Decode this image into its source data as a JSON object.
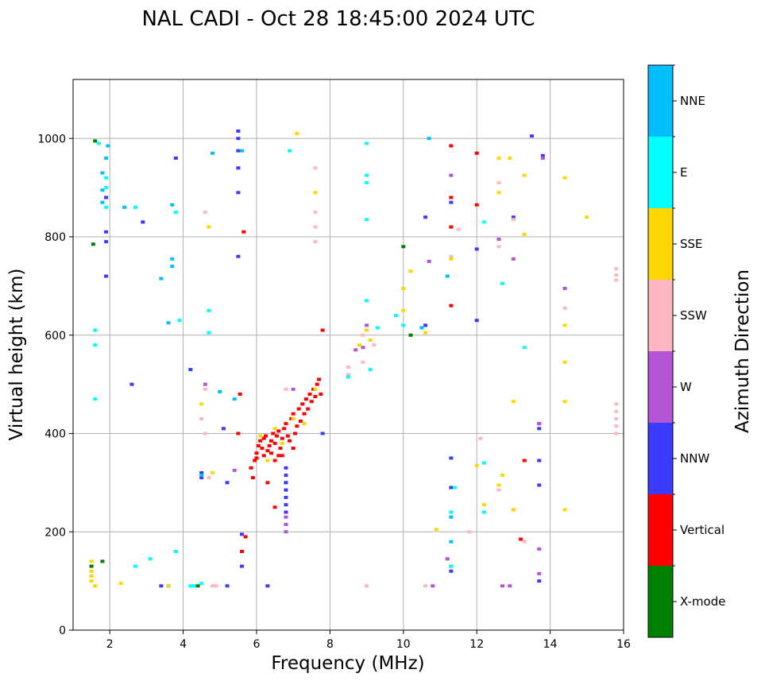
{
  "chart_data": {
    "type": "scatter",
    "title": "NAL CADI - Oct 28 18:45:00 2024 UTC",
    "xlabel": "Frequency (MHz)",
    "ylabel": "Virtual height (km)",
    "xlim": [
      1.0,
      16.0
    ],
    "ylim": [
      0,
      1120
    ],
    "xticks": [
      2,
      4,
      6,
      8,
      10,
      12,
      14,
      16
    ],
    "yticks": [
      0,
      200,
      400,
      600,
      800,
      1000
    ],
    "grid": true,
    "colorbar": {
      "label": "Azimuth Direction",
      "categories": [
        {
          "name": "X-mode",
          "color": "#008000"
        },
        {
          "name": "Vertical",
          "color": "#ff0000"
        },
        {
          "name": "NNW",
          "color": "#3b3bff"
        },
        {
          "name": "W",
          "color": "#b455d5"
        },
        {
          "name": "SSW",
          "color": "#ffb6c1"
        },
        {
          "name": "SSE",
          "color": "#ffd700"
        },
        {
          "name": "E",
          "color": "#00ffff"
        },
        {
          "name": "NNE",
          "color": "#00bfff"
        }
      ]
    },
    "series": [
      {
        "name": "Vertical",
        "points": [
          [
            5.85,
            330
          ],
          [
            5.95,
            345
          ],
          [
            6.0,
            360
          ],
          [
            6.05,
            375
          ],
          [
            6.1,
            385
          ],
          [
            6.15,
            370
          ],
          [
            6.2,
            390
          ],
          [
            6.25,
            395
          ],
          [
            6.3,
            365
          ],
          [
            6.35,
            375
          ],
          [
            6.4,
            385
          ],
          [
            6.45,
            400
          ],
          [
            6.5,
            380
          ],
          [
            6.55,
            395
          ],
          [
            6.6,
            405
          ],
          [
            6.65,
            370
          ],
          [
            6.7,
            390
          ],
          [
            6.75,
            410
          ],
          [
            6.8,
            420
          ],
          [
            6.85,
            395
          ],
          [
            6.9,
            385
          ],
          [
            6.95,
            430
          ],
          [
            7.0,
            440
          ],
          [
            7.05,
            400
          ],
          [
            7.1,
            415
          ],
          [
            7.15,
            450
          ],
          [
            7.2,
            425
          ],
          [
            7.25,
            460
          ],
          [
            7.3,
            440
          ],
          [
            7.35,
            470
          ],
          [
            7.4,
            450
          ],
          [
            7.45,
            480
          ],
          [
            7.5,
            465
          ],
          [
            7.55,
            490
          ],
          [
            7.6,
            475
          ],
          [
            7.65,
            500
          ],
          [
            7.7,
            510
          ],
          [
            7.75,
            480
          ],
          [
            6.2,
            355
          ],
          [
            6.4,
            360
          ],
          [
            6.6,
            355
          ],
          [
            6.0,
            350
          ],
          [
            5.9,
            310
          ],
          [
            6.5,
            345
          ],
          [
            6.7,
            355
          ],
          [
            5.7,
            190
          ],
          [
            5.6,
            160
          ],
          [
            6.8,
            300
          ],
          [
            5.55,
            480
          ],
          [
            5.65,
            810
          ],
          [
            12.0,
            970
          ],
          [
            12.0,
            865
          ],
          [
            11.3,
            880
          ],
          [
            11.3,
            820
          ],
          [
            11.3,
            985
          ],
          [
            11.3,
            660
          ],
          [
            7.8,
            610
          ],
          [
            6.5,
            250
          ],
          [
            13.2,
            185
          ],
          [
            13.3,
            345
          ],
          [
            5.5,
            400
          ],
          [
            6.3,
            300
          ],
          [
            7.0,
            370
          ]
        ]
      },
      {
        "name": "NNW",
        "points": [
          [
            6.8,
            330
          ],
          [
            6.8,
            315
          ],
          [
            6.8,
            300
          ],
          [
            6.8,
            285
          ],
          [
            6.8,
            270
          ],
          [
            6.8,
            255
          ],
          [
            6.8,
            240
          ],
          [
            5.5,
            1015
          ],
          [
            5.5,
            1000
          ],
          [
            5.5,
            975
          ],
          [
            5.5,
            940
          ],
          [
            5.5,
            890
          ],
          [
            3.8,
            960
          ],
          [
            4.2,
            530
          ],
          [
            2.6,
            500
          ],
          [
            1.9,
            810
          ],
          [
            1.9,
            790
          ],
          [
            1.9,
            880
          ],
          [
            1.9,
            720
          ],
          [
            11.3,
            870
          ],
          [
            11.3,
            350
          ],
          [
            11.3,
            290
          ],
          [
            11.3,
            130
          ],
          [
            11.3,
            120
          ],
          [
            13.5,
            1005
          ],
          [
            13.8,
            965
          ],
          [
            13.0,
            840
          ],
          [
            12.0,
            775
          ],
          [
            12.0,
            630
          ],
          [
            13.7,
            420
          ],
          [
            13.7,
            410
          ],
          [
            13.7,
            345
          ],
          [
            13.7,
            295
          ],
          [
            13.7,
            100
          ],
          [
            10.6,
            840
          ],
          [
            10.6,
            620
          ],
          [
            6.3,
            90
          ],
          [
            3.4,
            90
          ],
          [
            3.6,
            90
          ],
          [
            5.6,
            130
          ],
          [
            5.6,
            195
          ],
          [
            5.2,
            90
          ],
          [
            5.5,
            760
          ],
          [
            2.9,
            830
          ],
          [
            7.8,
            400
          ],
          [
            4.5,
            320
          ],
          [
            4.5,
            310
          ],
          [
            5.1,
            410
          ],
          [
            5.2,
            300
          ]
        ]
      },
      {
        "name": "W",
        "points": [
          [
            6.8,
            230
          ],
          [
            6.8,
            215
          ],
          [
            6.8,
            200
          ],
          [
            7.0,
            490
          ],
          [
            8.7,
            570
          ],
          [
            9.0,
            620
          ],
          [
            13.0,
            755
          ],
          [
            13.0,
            245
          ],
          [
            12.6,
            795
          ],
          [
            13.7,
            420
          ],
          [
            13.7,
            165
          ],
          [
            13.7,
            115
          ],
          [
            14.4,
            695
          ],
          [
            13.8,
            960
          ],
          [
            11.2,
            145
          ],
          [
            11.3,
            925
          ],
          [
            10.8,
            90
          ],
          [
            12.7,
            90
          ],
          [
            12.9,
            90
          ],
          [
            10.7,
            750
          ],
          [
            8.9,
            575
          ],
          [
            4.6,
            500
          ],
          [
            5.4,
            325
          ]
        ]
      },
      {
        "name": "SSW",
        "points": [
          [
            15.8,
            460
          ],
          [
            15.8,
            445
          ],
          [
            15.8,
            430
          ],
          [
            15.8,
            415
          ],
          [
            15.8,
            400
          ],
          [
            15.8,
            735
          ],
          [
            15.8,
            722
          ],
          [
            15.8,
            712
          ],
          [
            8.5,
            520
          ],
          [
            8.5,
            535
          ],
          [
            8.9,
            545
          ],
          [
            9.2,
            580
          ],
          [
            11.5,
            815
          ],
          [
            12.6,
            910
          ],
          [
            12.6,
            780
          ],
          [
            12.6,
            285
          ],
          [
            13.0,
            835
          ],
          [
            13.3,
            180
          ],
          [
            14.4,
            655
          ],
          [
            11.3,
            760
          ],
          [
            11.8,
            200
          ],
          [
            12.1,
            390
          ],
          [
            10.6,
            90
          ],
          [
            9.0,
            90
          ],
          [
            6.8,
            490
          ],
          [
            4.6,
            490
          ],
          [
            4.5,
            430
          ],
          [
            4.6,
            400
          ],
          [
            4.7,
            310
          ],
          [
            7.6,
            790
          ],
          [
            7.6,
            820
          ],
          [
            7.6,
            850
          ],
          [
            7.6,
            940
          ],
          [
            8.9,
            600
          ],
          [
            4.6,
            850
          ],
          [
            4.8,
            90
          ],
          [
            4.9,
            90
          ]
        ]
      },
      {
        "name": "SSE",
        "points": [
          [
            1.5,
            140
          ],
          [
            1.5,
            130
          ],
          [
            1.5,
            120
          ],
          [
            1.5,
            110
          ],
          [
            1.5,
            100
          ],
          [
            1.6,
            90
          ],
          [
            3.6,
            90
          ],
          [
            2.3,
            95
          ],
          [
            4.7,
            820
          ],
          [
            7.1,
            1010
          ],
          [
            7.6,
            890
          ],
          [
            8.8,
            580
          ],
          [
            9.0,
            610
          ],
          [
            9.1,
            590
          ],
          [
            10.0,
            695
          ],
          [
            10.0,
            650
          ],
          [
            10.2,
            730
          ],
          [
            10.6,
            605
          ],
          [
            10.9,
            205
          ],
          [
            11.3,
            755
          ],
          [
            12.2,
            255
          ],
          [
            12.6,
            960
          ],
          [
            12.6,
            890
          ],
          [
            12.6,
            295
          ],
          [
            12.7,
            315
          ],
          [
            12.9,
            960
          ],
          [
            13.0,
            465
          ],
          [
            13.0,
            245
          ],
          [
            13.3,
            925
          ],
          [
            13.3,
            805
          ],
          [
            14.4,
            920
          ],
          [
            14.4,
            620
          ],
          [
            14.4,
            545
          ],
          [
            14.4,
            465
          ],
          [
            14.4,
            245
          ],
          [
            15.0,
            840
          ],
          [
            6.7,
            380
          ],
          [
            6.5,
            410
          ],
          [
            7.0,
            430
          ],
          [
            7.3,
            420
          ],
          [
            7.6,
            490
          ],
          [
            6.1,
            395
          ],
          [
            6.3,
            345
          ],
          [
            4.8,
            320
          ],
          [
            4.5,
            460
          ],
          [
            12.0,
            335
          ]
        ]
      },
      {
        "name": "E",
        "points": [
          [
            1.9,
            920
          ],
          [
            1.9,
            900
          ],
          [
            1.9,
            860
          ],
          [
            9.0,
            925
          ],
          [
            9.0,
            910
          ],
          [
            9.0,
            990
          ],
          [
            9.0,
            835
          ],
          [
            9.0,
            670
          ],
          [
            9.3,
            615
          ],
          [
            9.8,
            640
          ],
          [
            10.0,
            620
          ],
          [
            12.2,
            830
          ],
          [
            12.7,
            705
          ],
          [
            13.3,
            575
          ],
          [
            11.3,
            130
          ],
          [
            11.3,
            240
          ],
          [
            11.4,
            290
          ],
          [
            12.2,
            240
          ],
          [
            12.2,
            340
          ],
          [
            8.5,
            515
          ],
          [
            9.1,
            530
          ],
          [
            3.8,
            850
          ],
          [
            3.8,
            160
          ],
          [
            4.7,
            650
          ],
          [
            4.7,
            605
          ],
          [
            2.7,
            860
          ],
          [
            2.7,
            130
          ],
          [
            3.1,
            145
          ],
          [
            3.9,
            630
          ],
          [
            1.6,
            610
          ],
          [
            1.6,
            470
          ],
          [
            4.3,
            90
          ],
          [
            4.5,
            95
          ],
          [
            4.2,
            90
          ],
          [
            1.6,
            580
          ],
          [
            1.7,
            990
          ],
          [
            6.9,
            975
          ]
        ]
      },
      {
        "name": "NNE",
        "points": [
          [
            3.7,
            755
          ],
          [
            3.7,
            740
          ],
          [
            3.6,
            625
          ],
          [
            3.4,
            715
          ],
          [
            3.7,
            865
          ],
          [
            4.8,
            970
          ],
          [
            5.6,
            975
          ],
          [
            10.7,
            1000
          ],
          [
            11.2,
            720
          ],
          [
            11.3,
            180
          ],
          [
            11.3,
            230
          ],
          [
            10.5,
            615
          ],
          [
            1.8,
            930
          ],
          [
            1.8,
            895
          ],
          [
            1.8,
            870
          ],
          [
            4.5,
            315
          ],
          [
            5.0,
            485
          ],
          [
            5.4,
            470
          ],
          [
            2.4,
            860
          ],
          [
            1.9,
            960
          ],
          [
            1.95,
            985
          ]
        ]
      },
      {
        "name": "X-mode",
        "points": [
          [
            10.0,
            780
          ],
          [
            10.2,
            600
          ],
          [
            1.6,
            995
          ],
          [
            1.5,
            130
          ],
          [
            1.55,
            785
          ],
          [
            4.4,
            90
          ],
          [
            1.8,
            140
          ]
        ]
      }
    ]
  }
}
